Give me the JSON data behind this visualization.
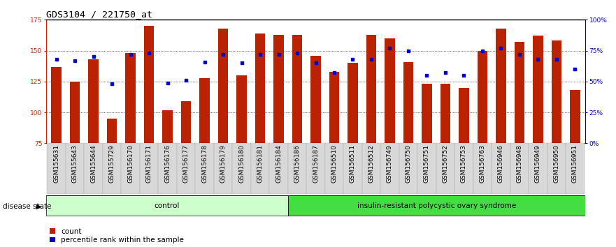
{
  "title": "GDS3104 / 221750_at",
  "samples": [
    "GSM155631",
    "GSM155643",
    "GSM155644",
    "GSM155729",
    "GSM156170",
    "GSM156171",
    "GSM156176",
    "GSM156177",
    "GSM156178",
    "GSM156179",
    "GSM156180",
    "GSM156181",
    "GSM156184",
    "GSM156186",
    "GSM156187",
    "GSM156510",
    "GSM156511",
    "GSM156512",
    "GSM156749",
    "GSM156750",
    "GSM156751",
    "GSM156752",
    "GSM156753",
    "GSM156763",
    "GSM156946",
    "GSM156948",
    "GSM156949",
    "GSM156950",
    "GSM156951"
  ],
  "counts": [
    137,
    125,
    143,
    95,
    148,
    170,
    102,
    109,
    128,
    168,
    130,
    164,
    163,
    163,
    146,
    133,
    140,
    163,
    160,
    141,
    123,
    123,
    120,
    150,
    168,
    157,
    162,
    158,
    118
  ],
  "percentile_ranks": [
    68,
    67,
    70,
    48,
    72,
    73,
    49,
    51,
    66,
    72,
    65,
    72,
    72,
    73,
    65,
    57,
    68,
    68,
    77,
    75,
    55,
    57,
    55,
    75,
    77,
    72,
    68,
    68,
    60
  ],
  "control_count": 13,
  "disease_count": 16,
  "ylim_left": [
    75,
    175
  ],
  "ylim_right": [
    0,
    100
  ],
  "yticks_left": [
    75,
    100,
    125,
    150,
    175
  ],
  "yticks_right": [
    0,
    25,
    50,
    75,
    100
  ],
  "bar_color": "#bb2200",
  "dot_color": "#0000cc",
  "control_label": "control",
  "disease_label": "insulin-resistant polycystic ovary syndrome",
  "legend_count_label": "count",
  "legend_pct_label": "percentile rank within the sample",
  "control_bg": "#ccffcc",
  "disease_bg": "#44dd44",
  "disease_state_label": "disease state",
  "bar_width": 0.55,
  "right_axis_color": "#0000cc",
  "left_axis_color": "#cc2200",
  "title_fontsize": 9.5,
  "tick_fontsize": 6.5,
  "label_fontsize": 7.5
}
